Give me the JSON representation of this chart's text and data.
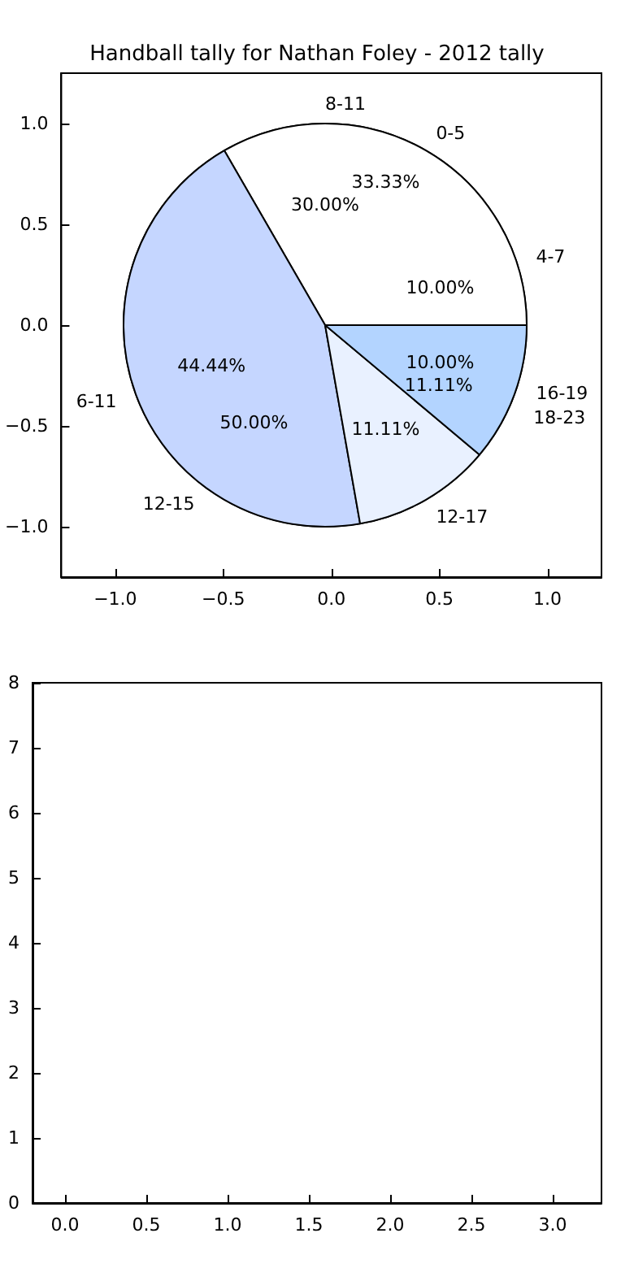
{
  "chart_data": [
    {
      "type": "scatter",
      "title": "Handball tally for Nathan Foley - 2012 tally",
      "xlim": [
        -1.25,
        1.25
      ],
      "ylim": [
        -1.25,
        1.25
      ],
      "xticks": [
        {
          "value": -1,
          "label": "−1.0"
        },
        {
          "value": -0.5,
          "label": "−0.5"
        },
        {
          "value": 0,
          "label": "0.0"
        },
        {
          "value": 0.5,
          "label": "0.5"
        },
        {
          "value": 1,
          "label": "1.0"
        }
      ],
      "yticks": [
        {
          "value": -1,
          "label": "−1.0"
        },
        {
          "value": -0.5,
          "label": "−0.5"
        },
        {
          "value": 0,
          "label": "0.0"
        },
        {
          "value": 0.5,
          "label": "0.5"
        },
        {
          "value": 1,
          "label": "1.0"
        }
      ]
    },
    {
      "type": "pie",
      "categories": [
        "4-7",
        "8-11",
        "12-15",
        "16-19"
      ],
      "values": [
        10,
        30,
        50,
        10
      ],
      "value_labels": [
        "10.00%",
        "30.00%",
        "50.00%",
        "10.00%"
      ],
      "colors": [
        "#ffffff",
        "#e9f1ff",
        "#c5d6ff",
        "#b3d4ff"
      ]
    },
    {
      "type": "pie",
      "categories": [
        "0-5",
        "6-11",
        "12-17",
        "18-23"
      ],
      "values": [
        33.33,
        44.44,
        11.11,
        11.11
      ],
      "value_labels": [
        "33.33%",
        "44.44%",
        "11.11%",
        "11.11%"
      ],
      "colors": [
        "#ffffff",
        "#c5d6ff",
        "#e9f1ff",
        "#b3d4ff"
      ]
    },
    {
      "type": "scatter",
      "xlim": [
        -0.2,
        3.3
      ],
      "ylim": [
        0,
        8
      ],
      "xticks": [
        {
          "value": 0,
          "label": "0.0"
        },
        {
          "value": 0.5,
          "label": "0.5"
        },
        {
          "value": 1,
          "label": "1.0"
        },
        {
          "value": 1.5,
          "label": "1.5"
        },
        {
          "value": 2,
          "label": "2.0"
        },
        {
          "value": 2.5,
          "label": "2.5"
        },
        {
          "value": 3,
          "label": "3.0"
        }
      ],
      "yticks": [
        0,
        1,
        2,
        3,
        4,
        5,
        6,
        7,
        8
      ]
    }
  ]
}
